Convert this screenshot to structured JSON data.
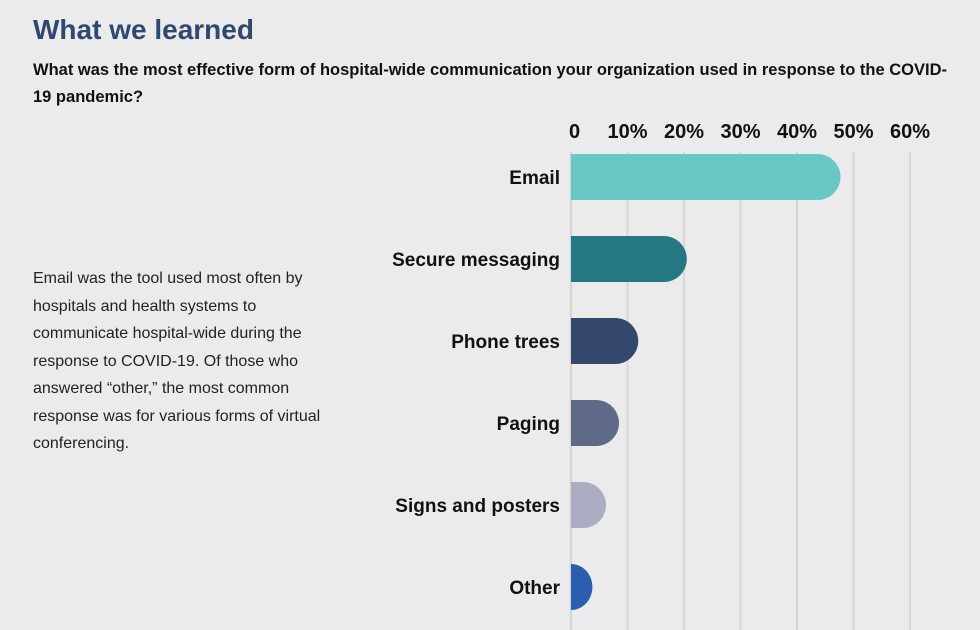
{
  "title": "What we learned",
  "question": "What was the most effective form of hospital-wide communication your organization used in response to the COVID-19 pandemic?",
  "description": "Email was the tool used most often by hospitals and health systems to communicate hospital-wide during the response to COVID-19. Of those who answered “other,” the most common response was for various forms of virtual conferencing.",
  "chart_data": {
    "type": "bar",
    "orientation": "horizontal",
    "categories": [
      "Email",
      "Secure messaging",
      "Phone trees",
      "Paging",
      "Signs and posters",
      "Other"
    ],
    "values": [
      47.7,
      20.5,
      11.9,
      8.5,
      6.2,
      3.8
    ],
    "colors": [
      "#69c7c6",
      "#257883",
      "#33486c",
      "#5f6a88",
      "#abaec3",
      "#2b5eae"
    ],
    "xlim": [
      0,
      60
    ],
    "tick_labels": [
      "0",
      "10%",
      "20%",
      "30%",
      "40%",
      "50%",
      "60%"
    ],
    "tick_values": [
      0,
      10,
      20,
      30,
      40,
      50,
      60
    ],
    "axis_position": "top",
    "grid": true,
    "gridline_color": "#d6d6d9"
  }
}
